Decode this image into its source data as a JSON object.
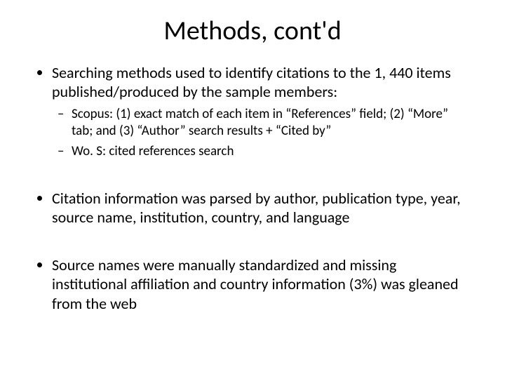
{
  "title": "Methods, cont'd",
  "bullets": {
    "b1": "Searching methods used to identify citations to the 1, 440 items published/produced by the sample members:",
    "b1_sub1": "Scopus: (1) exact match of each item in “References” field; (2) “More” tab; and (3) “Author” search results + “Cited by”",
    "b1_sub2": "Wo. S: cited references search",
    "b2": "Citation information was parsed by author, publication type, year, source name, institution, country, and language",
    "b3": "Source names were manually standardized and missing institutional affiliation and country information (3%) was gleaned from the web"
  },
  "style": {
    "background_color": "#ffffff",
    "text_color": "#000000",
    "title_fontsize": 38,
    "body_fontsize": 22,
    "sub_fontsize": 19,
    "font_family": "Calibri"
  }
}
